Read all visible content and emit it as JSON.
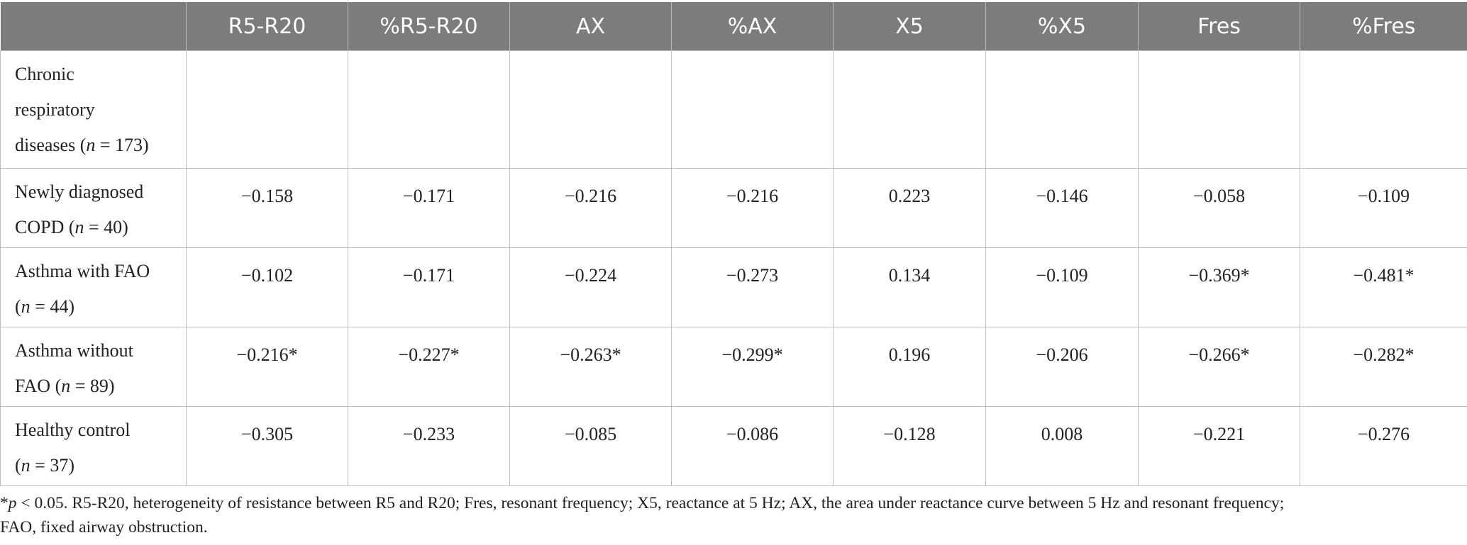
{
  "table": {
    "columns": [
      "",
      "R5-R20",
      "%R5-R20",
      "AX",
      "%AX",
      "X5",
      "%X5",
      "Fres",
      "%Fres"
    ],
    "rows": [
      {
        "label_lines": [
          "Chronic",
          "respiratory",
          "diseases (n = 173)"
        ],
        "values": [
          "",
          "",
          "",
          "",
          "",
          "",
          "",
          ""
        ]
      },
      {
        "label_lines": [
          "Newly diagnosed",
          "COPD (n = 40)"
        ],
        "values": [
          "−0.158",
          "−0.171",
          "−0.216",
          "−0.216",
          "0.223",
          "−0.146",
          "−0.058",
          "−0.109"
        ]
      },
      {
        "label_lines": [
          "Asthma with FAO",
          "(n = 44)"
        ],
        "values": [
          "−0.102",
          "−0.171",
          "−0.224",
          "−0.273",
          "0.134",
          "−0.109",
          "−0.369*",
          "−0.481*"
        ]
      },
      {
        "label_lines": [
          "Asthma without",
          "FAO (n = 89)"
        ],
        "values": [
          "−0.216*",
          "−0.227*",
          "−0.263*",
          "−0.299*",
          "0.196",
          "−0.206",
          "−0.266*",
          "−0.282*"
        ]
      },
      {
        "label_lines": [
          "Healthy control",
          "(n = 37)"
        ],
        "values": [
          "−0.305",
          "−0.233",
          "−0.085",
          "−0.086",
          "−0.128",
          "0.008",
          "−0.221",
          "−0.276"
        ]
      }
    ]
  },
  "footnote": {
    "line1": "*p < 0.05. R5-R20, heterogeneity of resistance between R5 and R20; Fres, resonant frequency; X5, reactance at 5 Hz; AX, the area under reactance curve between 5 Hz and resonant frequency;",
    "line2": "FAO, fixed airway obstruction."
  }
}
